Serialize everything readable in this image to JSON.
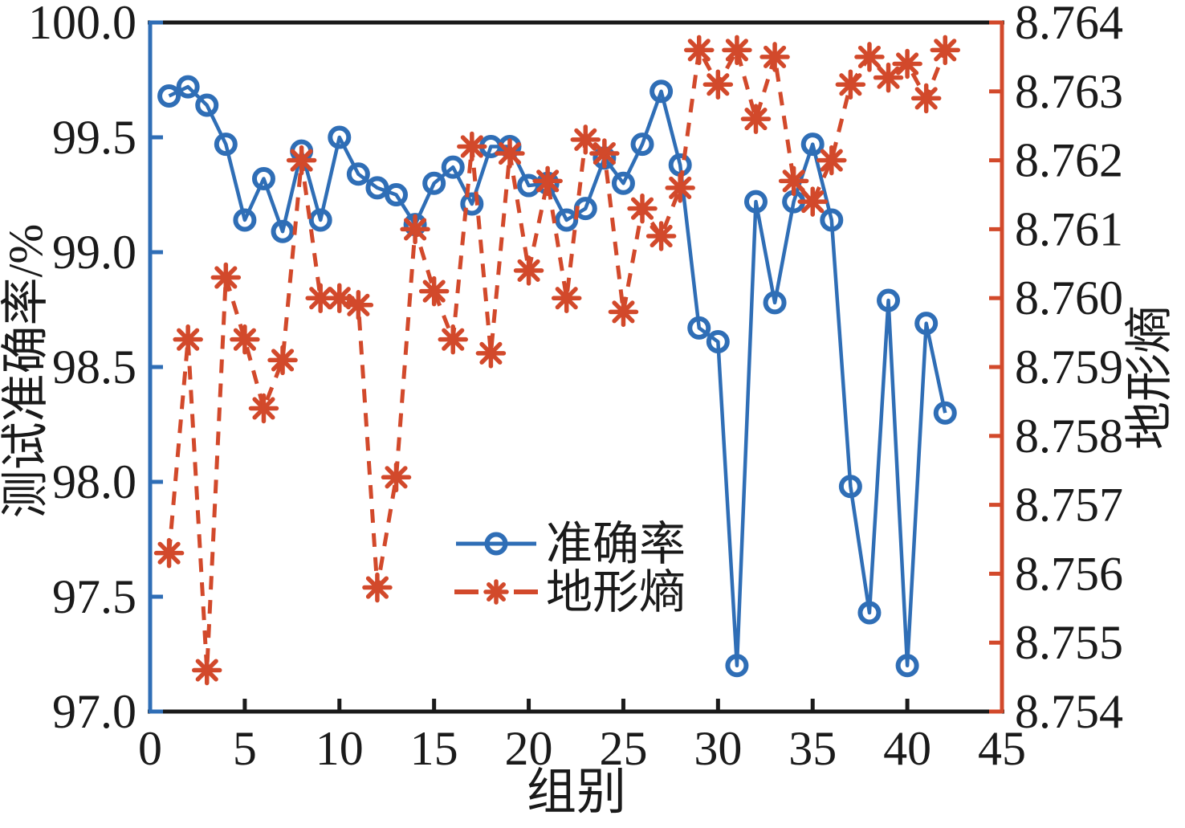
{
  "chart_data": {
    "type": "line",
    "title": "",
    "x": [
      1,
      2,
      3,
      4,
      5,
      6,
      7,
      8,
      9,
      10,
      11,
      12,
      13,
      14,
      15,
      16,
      17,
      18,
      19,
      20,
      21,
      22,
      23,
      24,
      25,
      26,
      27,
      28,
      29,
      30,
      31,
      32,
      33,
      34,
      35,
      36,
      37,
      38,
      39,
      40,
      41,
      42
    ],
    "series": [
      {
        "name": "准确率",
        "axis": "left",
        "color": "#2F6EB6",
        "marker": "circle",
        "line_style": "solid",
        "values": [
          99.68,
          99.72,
          99.64,
          99.47,
          99.14,
          99.32,
          99.09,
          99.44,
          99.14,
          99.5,
          99.34,
          99.28,
          99.25,
          99.12,
          99.3,
          99.37,
          99.21,
          99.46,
          99.46,
          99.29,
          99.3,
          99.14,
          99.19,
          99.41,
          99.3,
          99.47,
          99.7,
          99.38,
          98.67,
          98.61,
          97.2,
          99.22,
          98.78,
          99.22,
          99.47,
          99.14,
          97.98,
          97.43,
          98.79,
          97.2,
          98.69,
          98.3
        ]
      },
      {
        "name": "地形熵",
        "axis": "right",
        "color": "#D2492B",
        "marker": "asterisk",
        "line_style": "dashed",
        "values": [
          8.7563,
          8.7594,
          8.7546,
          8.7603,
          8.7594,
          8.7584,
          8.7591,
          8.762,
          8.76,
          8.76,
          8.7599,
          8.7558,
          8.7574,
          8.761,
          8.7601,
          8.7594,
          8.7622,
          8.7592,
          8.7621,
          8.7604,
          8.7617,
          8.76,
          8.7623,
          8.7621,
          8.7598,
          8.7613,
          8.7609,
          8.7616,
          8.7636,
          8.7631,
          8.7636,
          8.7626,
          8.7635,
          8.7617,
          8.7614,
          8.762,
          8.7631,
          8.7635,
          8.7632,
          8.7634,
          8.7629,
          8.7636
        ]
      }
    ],
    "x_axis": {
      "label": "组别",
      "min": 0,
      "max": 45,
      "tick_labels": [
        "0",
        "5",
        "10",
        "15",
        "20",
        "25",
        "30",
        "35",
        "40",
        "45"
      ],
      "color": "#1a1a1a"
    },
    "left_axis": {
      "label": "测试准确率/%",
      "min": 97.0,
      "max": 100.0,
      "tick_labels": [
        "97.0",
        "97.5",
        "98.0",
        "98.5",
        "99.0",
        "99.5",
        "100.0"
      ],
      "color": "#2F6EB6"
    },
    "right_axis": {
      "label": "地形熵",
      "min": 8.754,
      "max": 8.764,
      "tick_labels": [
        "8.754",
        "8.755",
        "8.756",
        "8.757",
        "8.758",
        "8.759",
        "8.760",
        "8.761",
        "8.762",
        "8.763",
        "8.764"
      ],
      "color": "#D2492B"
    },
    "legend": {
      "entries": [
        "准确率",
        "地形熵"
      ],
      "position": "inside-center"
    },
    "grid": false
  },
  "colors": {
    "accent_blue": "#2F6EB6",
    "accent_red": "#D2492B",
    "axis_black": "#1a1a1a",
    "background": "#FFFFFF"
  }
}
